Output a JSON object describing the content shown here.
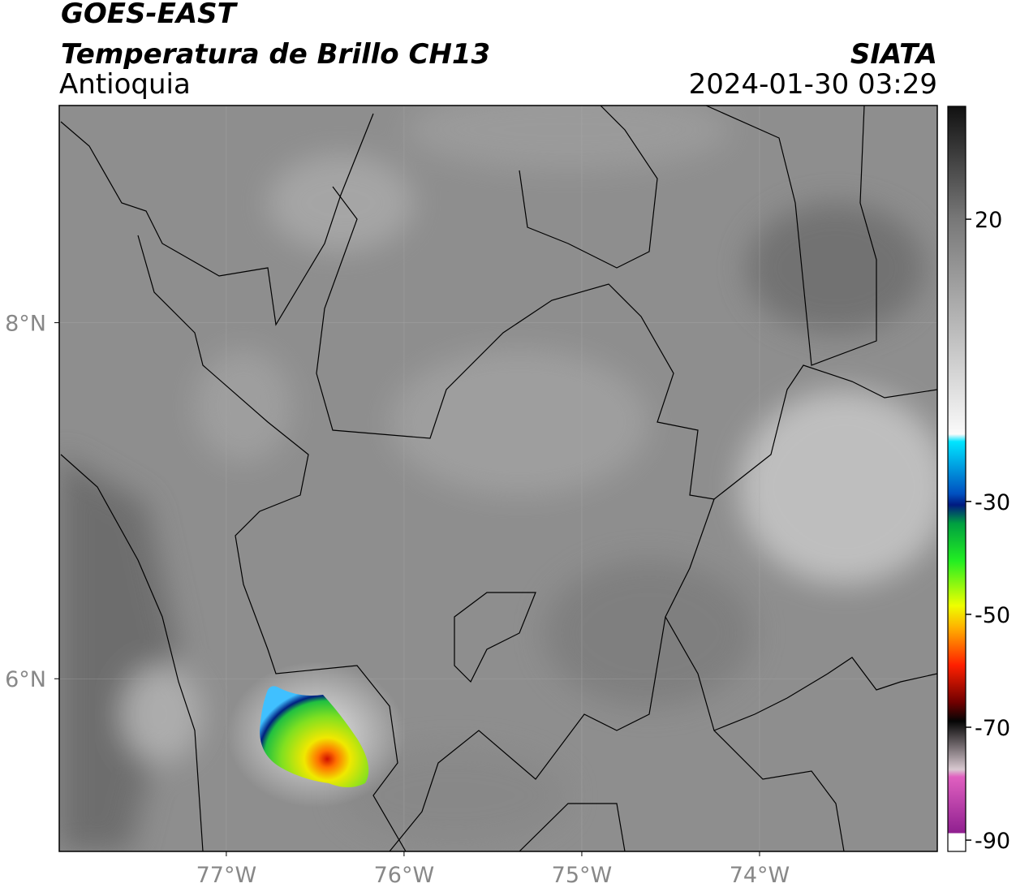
{
  "header": {
    "title": "GOES-EAST",
    "subtitle": "Temperatura de Brillo CH13",
    "region": "Antioquia",
    "source": "SIATA",
    "datetime": "2024-01-30 03:29"
  },
  "map": {
    "lonlim": [
      -77.94,
      -73.0
    ],
    "latlim": [
      5.03,
      9.22
    ],
    "lonticks": [
      {
        "value": -77,
        "label": "77°W"
      },
      {
        "value": -76,
        "label": "76°W"
      },
      {
        "value": -75,
        "label": "75°W"
      },
      {
        "value": -74,
        "label": "74°W"
      }
    ],
    "latticks": [
      {
        "value": 8,
        "label": "8°N"
      },
      {
        "value": 6,
        "label": "6°N"
      }
    ]
  },
  "colorbar": {
    "lim": [
      -92,
      40
    ],
    "ticks": [
      20,
      -30,
      -50,
      -70,
      -90
    ]
  }
}
